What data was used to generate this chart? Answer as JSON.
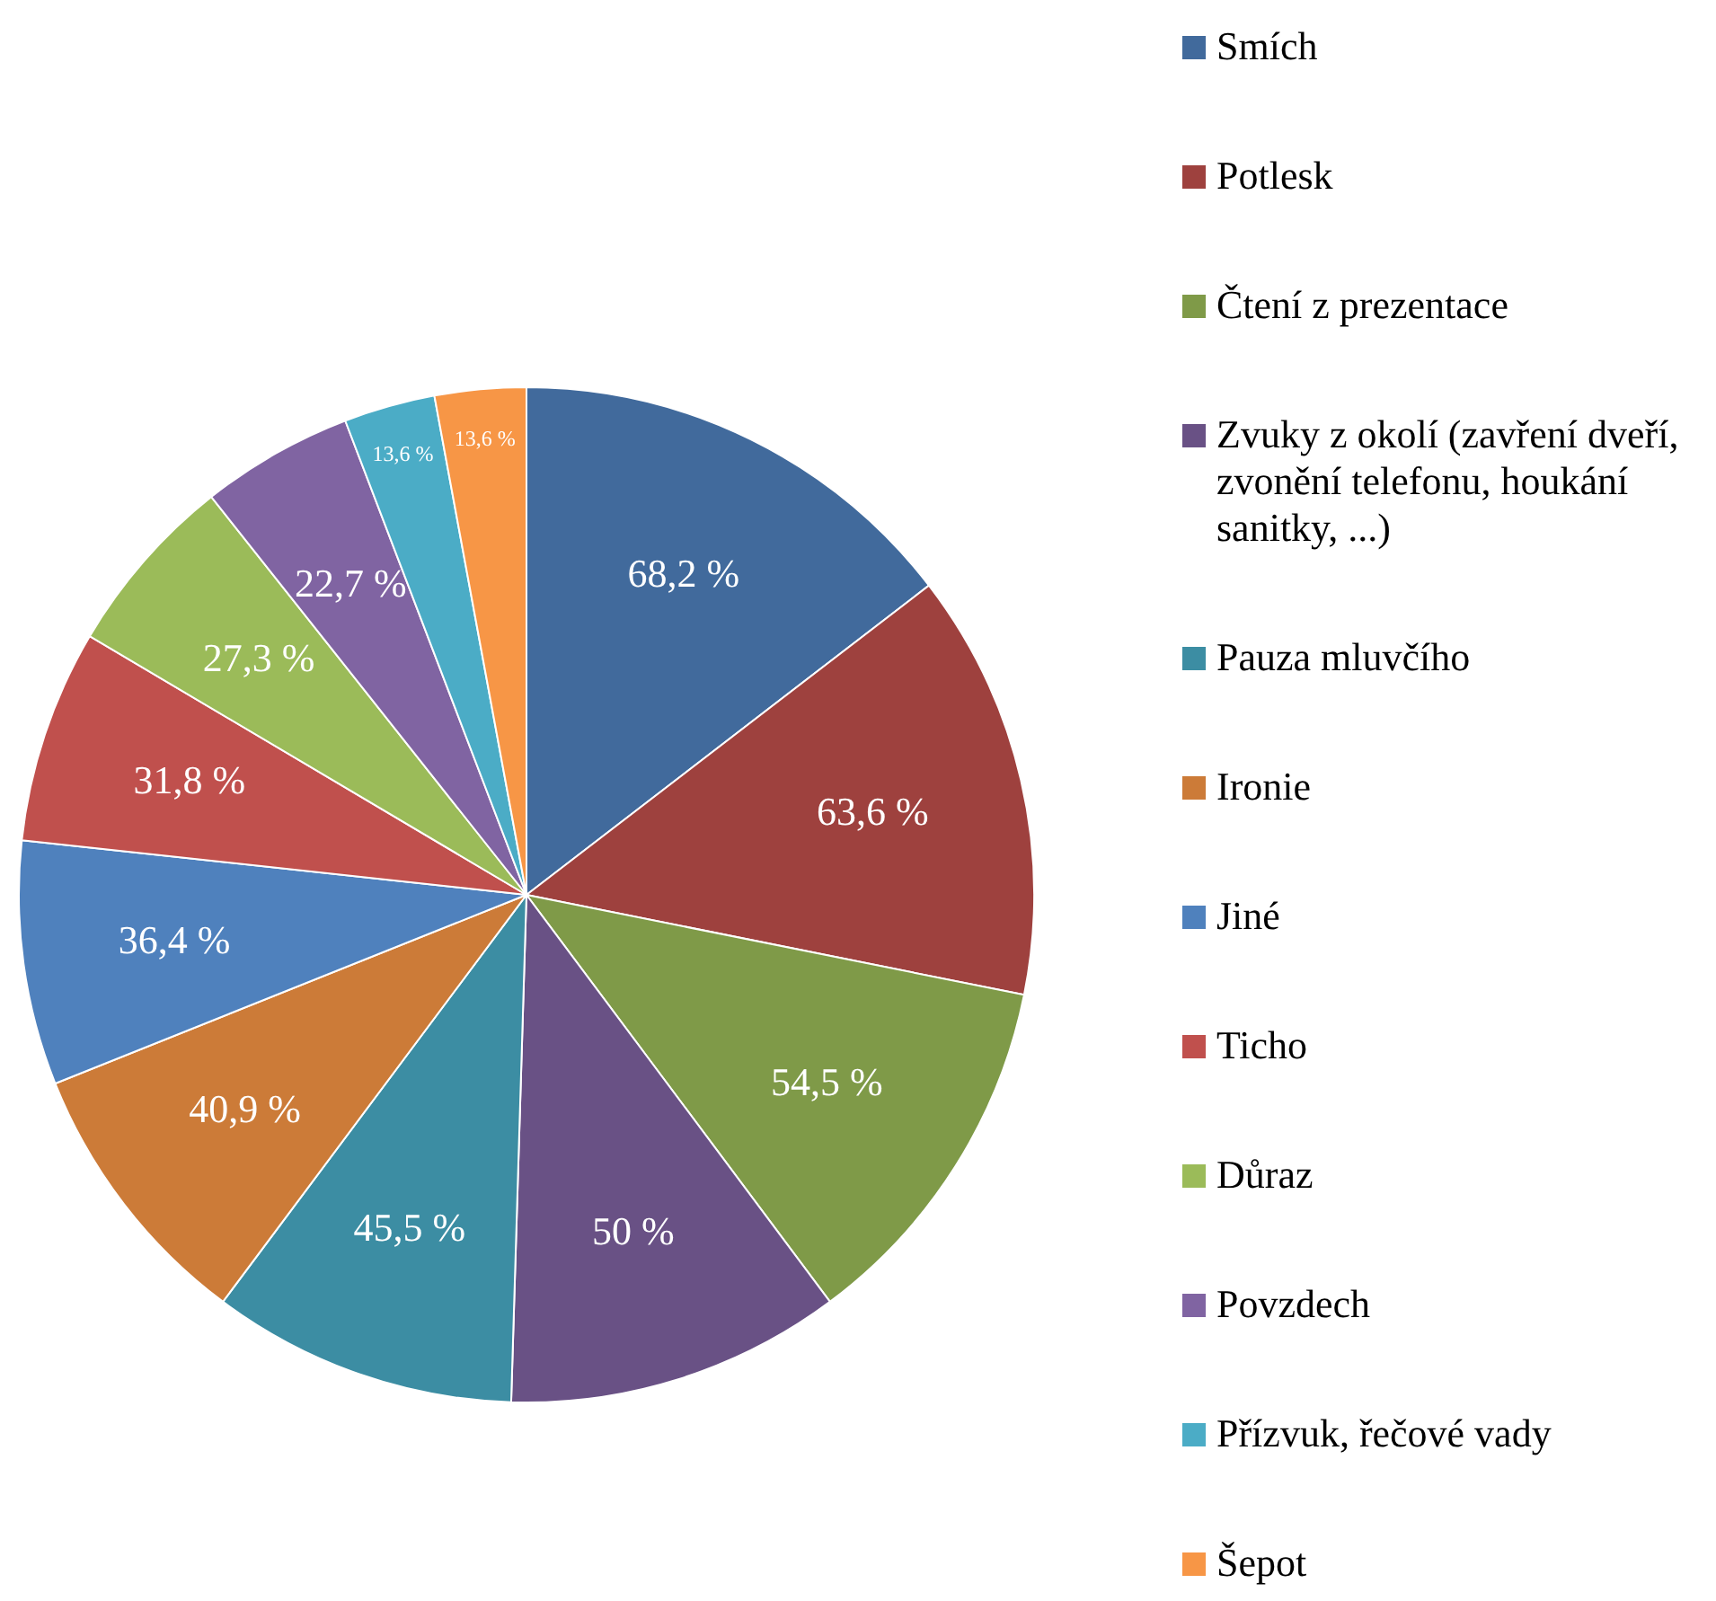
{
  "chart_data": {
    "type": "pie",
    "categories": [
      "Smích",
      "Potlesk",
      "Čtení z prezentace",
      "Zvuky z okolí (zavření dveří, zvonění telefonu, houkání sanitky, ...)",
      "Pauza mluvčího",
      "Ironie",
      "Jiné",
      "Ticho",
      "Důraz",
      "Povzdech",
      "Přízvuk, řečové vady",
      "Šepot"
    ],
    "values": [
      68.2,
      63.6,
      54.5,
      50,
      45.5,
      40.9,
      36.4,
      31.8,
      27.3,
      22.7,
      13.6,
      13.6
    ],
    "value_labels": [
      "68,2 %",
      "63,6 %",
      "54,5 %",
      "50 %",
      "45,5 %",
      "40,9 %",
      "36,4 %",
      "31,8 %",
      "27,3 %",
      "22,7 %",
      "13,6 %",
      "13,6 %"
    ],
    "colors": [
      "#416a9c",
      "#9e413e",
      "#7f9a48",
      "#695185",
      "#3c8da3",
      "#cc7b38",
      "#4f81bd",
      "#c0504d",
      "#9bbb59",
      "#8064a2",
      "#4bacc6",
      "#f79646"
    ],
    "legend": "right"
  }
}
